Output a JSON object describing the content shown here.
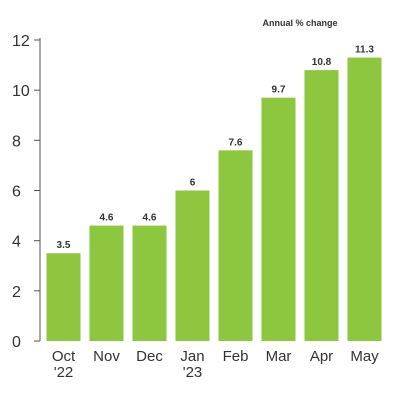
{
  "chart_data": {
    "type": "bar",
    "subtitle": "Annual % change",
    "categories": [
      [
        "Oct",
        "'22"
      ],
      [
        "Nov"
      ],
      [
        "Dec"
      ],
      [
        "Jan",
        "'23"
      ],
      [
        "Feb"
      ],
      [
        "Mar"
      ],
      [
        "Apr"
      ],
      [
        "May"
      ]
    ],
    "values": [
      3.5,
      4.6,
      4.6,
      6,
      7.6,
      9.7,
      10.8,
      11.3
    ],
    "value_labels": [
      "3.5",
      "4.6",
      "4.6",
      "6",
      "7.6",
      "9.7",
      "10.8",
      "11.3"
    ],
    "ylim": [
      0,
      12
    ],
    "yticks": [
      0,
      2,
      4,
      6,
      8,
      10,
      12
    ],
    "grid": false,
    "legend": "none",
    "colors": {
      "bar": "#8dc63f",
      "axis": "#555555",
      "text": "#333333"
    }
  }
}
